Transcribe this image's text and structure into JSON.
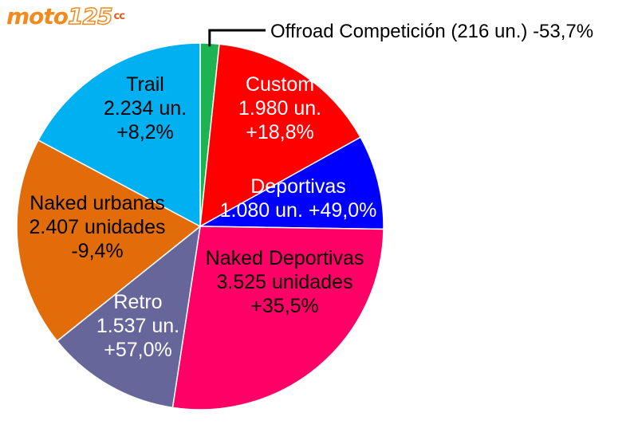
{
  "logo": {
    "text": "moto",
    "number": "125",
    "suffix": "cc"
  },
  "chart_data": {
    "type": "pie",
    "slices": [
      {
        "category": "Offroad Competición",
        "units": 216,
        "label_lines": [
          "Offroad Competición (216 un.) -53,7%"
        ],
        "color": "#1db352",
        "text_color": "#000000"
      },
      {
        "category": "Custom",
        "units": 1980,
        "label_lines": [
          "Custom",
          "1.980 un.",
          "+18,8%"
        ],
        "color": "#ff0000",
        "text_color": "#ffffff"
      },
      {
        "category": "Deportivas",
        "units": 1080,
        "label_lines": [
          "Deportivas",
          "1.080 un. +49,0%"
        ],
        "color": "#0000ff",
        "text_color": "#ffffff"
      },
      {
        "category": "Naked Deportivas",
        "units": 3525,
        "label_lines": [
          "Naked Deportivas",
          "3.525 unidades",
          "+35,5%"
        ],
        "color": "#ff0066",
        "text_color": "#000000"
      },
      {
        "category": "Retro",
        "units": 1537,
        "label_lines": [
          "Retro",
          "1.537 un.",
          "+57,0%"
        ],
        "color": "#66669a",
        "text_color": "#ffffff"
      },
      {
        "category": "Naked urbanas",
        "units": 2407,
        "label_lines": [
          "Naked urbanas",
          "2.407 unidades",
          "-9,4%"
        ],
        "color": "#e36c0a",
        "text_color": "#000000"
      },
      {
        "category": "Trail",
        "units": 2234,
        "label_lines": [
          "Trail",
          "2.234 un.",
          "+8,2%"
        ],
        "color": "#00b0f0",
        "text_color": "#000000"
      }
    ]
  }
}
